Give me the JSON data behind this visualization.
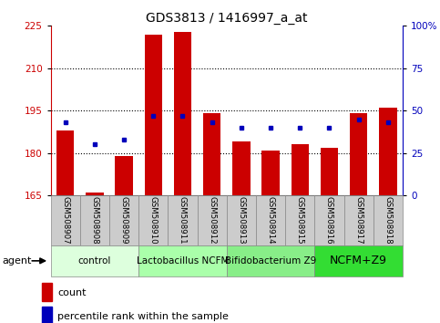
{
  "title": "GDS3813 / 1416997_a_at",
  "samples": [
    "GSM508907",
    "GSM508908",
    "GSM508909",
    "GSM508910",
    "GSM508911",
    "GSM508912",
    "GSM508913",
    "GSM508914",
    "GSM508915",
    "GSM508916",
    "GSM508917",
    "GSM508918"
  ],
  "counts": [
    188,
    166,
    179,
    222,
    223,
    194,
    184,
    181,
    183,
    182,
    194,
    196
  ],
  "percentile_ranks": [
    43,
    30,
    33,
    47,
    47,
    43,
    40,
    40,
    40,
    40,
    45,
    43
  ],
  "ylim_left": [
    165,
    225
  ],
  "ylim_right": [
    0,
    100
  ],
  "yticks_left": [
    165,
    180,
    195,
    210,
    225
  ],
  "yticks_right": [
    0,
    25,
    50,
    75,
    100
  ],
  "bar_color": "#cc0000",
  "dot_color": "#0000bb",
  "bar_width": 0.6,
  "groups": [
    {
      "label": "control",
      "indices": [
        0,
        1,
        2
      ],
      "color": "#ddffdd"
    },
    {
      "label": "Lactobacillus NCFM",
      "indices": [
        3,
        4,
        5
      ],
      "color": "#aaffaa"
    },
    {
      "label": "Bifidobacterium Z9",
      "indices": [
        6,
        7,
        8
      ],
      "color": "#88ee88"
    },
    {
      "label": "NCFM+Z9",
      "indices": [
        9,
        10,
        11
      ],
      "color": "#33dd33"
    }
  ],
  "tick_label_bg": "#cccccc",
  "agent_label": "agent",
  "legend_count_label": "count",
  "legend_percentile_label": "percentile rank within the sample",
  "left_axis_color": "#cc0000",
  "right_axis_color": "#0000bb",
  "title_fontsize": 10,
  "tick_fontsize": 7.5,
  "sample_fontsize": 6.2,
  "group_fontsize": 7.5
}
